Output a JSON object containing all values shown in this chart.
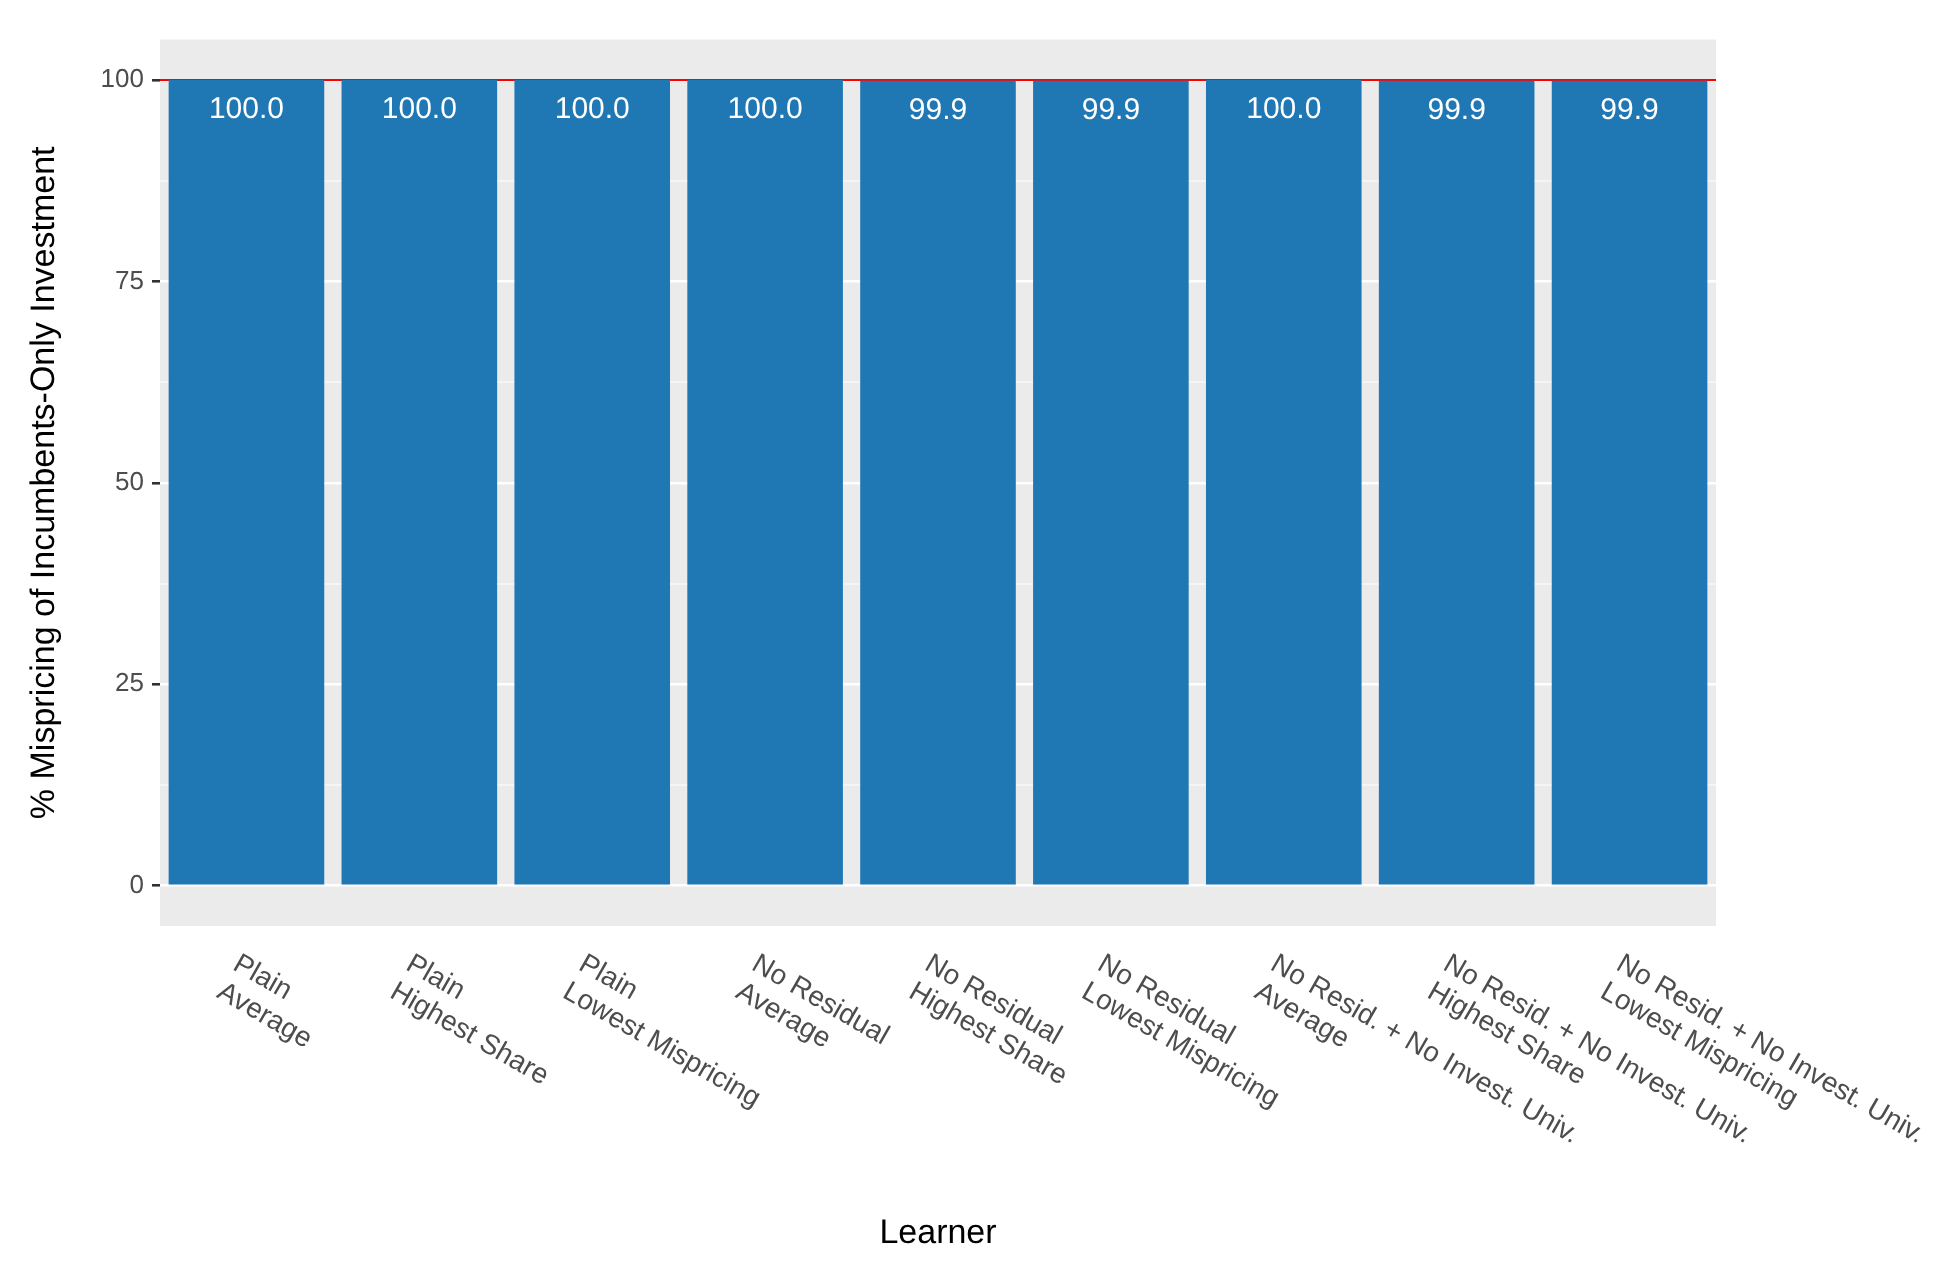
{
  "chart_data": {
    "type": "bar",
    "categories": [
      "Plain\nAverage",
      "Plain\nHighest Share",
      "Plain\nLowest Mispricing",
      "No Residual\nAverage",
      "No Residual\nHighest Share",
      "No Residual\nLowest Mispricing",
      "No Resid. + No Invest. Univ.\nAverage",
      "No Resid. + No Invest. Univ.\nHighest Share",
      "No Resid. + No Invest. Univ.\nLowest Mispricing"
    ],
    "values": [
      100.0,
      100.0,
      100.0,
      100.0,
      99.9,
      99.9,
      100.0,
      99.9,
      99.9
    ],
    "value_labels": [
      "100.0",
      "100.0",
      "100.0",
      "100.0",
      "99.9",
      "99.9",
      "100.0",
      "99.9",
      "99.9"
    ],
    "color": "#1f77b4",
    "xlabel": "Learner",
    "ylabel": "% Mispricing of Incumbents-Only Investment",
    "ylim": [
      -5,
      105
    ],
    "yticks": [
      0,
      {
        "value": 12.5,
        "label": null
      },
      25,
      {
        "value": 37.5,
        "label": null
      },
      50,
      {
        "value": 62.5,
        "label": null
      },
      75,
      {
        "value": 87.5,
        "label": null
      },
      100
    ],
    "ref_lines": [
      {
        "axis": "y",
        "value": 100,
        "color": "#ff0000"
      }
    ],
    "grid": "y",
    "legend": false
  }
}
